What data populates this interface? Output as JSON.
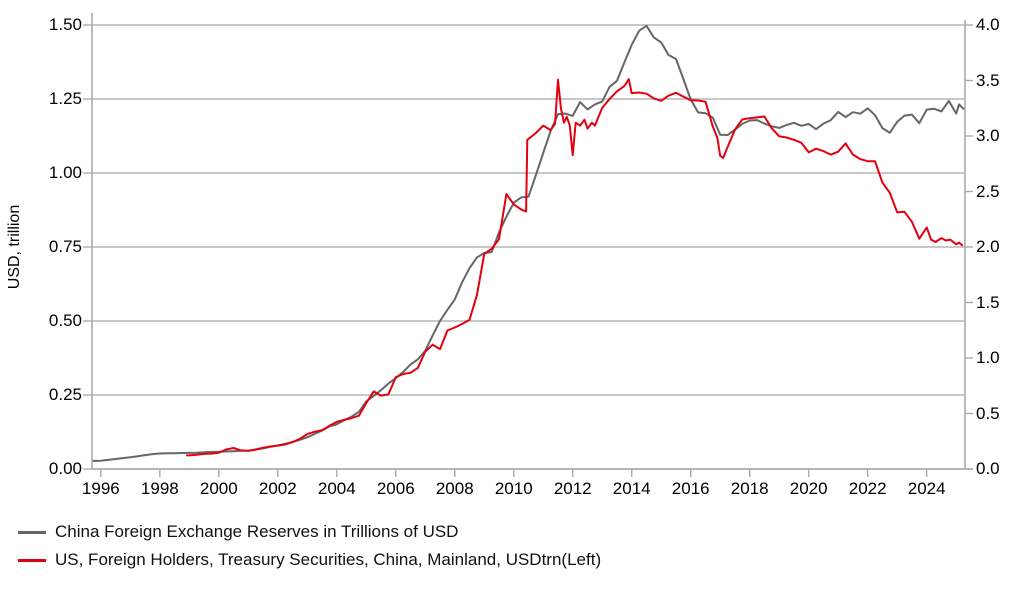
{
  "colors": {
    "background": "#ffffff",
    "grid": "#b6b6b6",
    "axis": "#aaaaaa",
    "text": "#000000",
    "series_gray": "#666666",
    "series_red": "#e3000f"
  },
  "chart_data": {
    "type": "line",
    "title": "",
    "grid": "horizontal",
    "legend_position": "bottom-left",
    "x_axis": {
      "range": [
        1995.7,
        2025.3
      ],
      "tick_values": [
        1996,
        1998,
        2000,
        2002,
        2004,
        2006,
        2008,
        2010,
        2012,
        2014,
        2016,
        2018,
        2020,
        2022,
        2024
      ],
      "tick_labels": [
        "1996",
        "1998",
        "2000",
        "2002",
        "2004",
        "2006",
        "2008",
        "2010",
        "2012",
        "2014",
        "2016",
        "2018",
        "2020",
        "2022",
        "2024"
      ]
    },
    "left_axis": {
      "label": "USD, trillion",
      "range": [
        0,
        1.5
      ],
      "tick_values": [
        0,
        0.25,
        0.5,
        0.75,
        1.0,
        1.25,
        1.5
      ],
      "tick_labels": [
        "0.00",
        "0.25",
        "0.50",
        "0.75",
        "1.00",
        "1.25",
        "1.50"
      ]
    },
    "right_axis": {
      "label": "",
      "range": [
        0,
        4.0
      ],
      "tick_values": [
        0,
        0.5,
        1.0,
        1.5,
        2.0,
        2.5,
        3.0,
        3.5,
        4.0
      ],
      "tick_labels": [
        "0.0",
        "0.5",
        "1.0",
        "1.5",
        "2.0",
        "2.5",
        "3.0",
        "3.5",
        "4.0"
      ]
    },
    "series": [
      {
        "name": "China Foreign Exchange Reserves in Trillions of USD",
        "axis": "right",
        "color": "#666666",
        "x": [
          1995.75,
          1996,
          1996.25,
          1996.5,
          1996.75,
          1997,
          1997.25,
          1997.5,
          1997.75,
          1998,
          1998.25,
          1998.5,
          1998.75,
          1999,
          1999.25,
          1999.5,
          1999.75,
          2000,
          2000.25,
          2000.5,
          2000.75,
          2001,
          2001.25,
          2001.5,
          2001.75,
          2002,
          2002.25,
          2002.5,
          2002.75,
          2003,
          2003.25,
          2003.5,
          2003.75,
          2004,
          2004.25,
          2004.5,
          2004.75,
          2005,
          2005.25,
          2005.5,
          2005.75,
          2006,
          2006.25,
          2006.5,
          2006.75,
          2007,
          2007.25,
          2007.5,
          2007.75,
          2008,
          2008.25,
          2008.5,
          2008.75,
          2009,
          2009.25,
          2009.5,
          2009.75,
          2010,
          2010.25,
          2010.5,
          2010.75,
          2011,
          2011.25,
          2011.5,
          2011.75,
          2012,
          2012.25,
          2012.5,
          2012.75,
          2013,
          2013.25,
          2013.5,
          2013.75,
          2014,
          2014.25,
          2014.5,
          2014.75,
          2015,
          2015.25,
          2015.5,
          2015.75,
          2016,
          2016.25,
          2016.5,
          2016.75,
          2017,
          2017.25,
          2017.5,
          2017.75,
          2018,
          2018.25,
          2018.5,
          2018.75,
          2019,
          2019.25,
          2019.5,
          2019.75,
          2020,
          2020.25,
          2020.5,
          2020.75,
          2021,
          2021.25,
          2021.5,
          2021.75,
          2022,
          2022.25,
          2022.5,
          2022.75,
          2023,
          2023.25,
          2023.5,
          2023.75,
          2024,
          2024.25,
          2024.5,
          2024.75,
          2025,
          2025.1,
          2025.25
        ],
        "values": [
          0.073,
          0.075,
          0.082,
          0.09,
          0.098,
          0.105,
          0.115,
          0.125,
          0.134,
          0.14,
          0.141,
          0.141,
          0.144,
          0.145,
          0.147,
          0.151,
          0.154,
          0.155,
          0.158,
          0.16,
          0.164,
          0.166,
          0.175,
          0.186,
          0.2,
          0.212,
          0.227,
          0.243,
          0.263,
          0.286,
          0.316,
          0.346,
          0.384,
          0.403,
          0.44,
          0.471,
          0.515,
          0.61,
          0.659,
          0.711,
          0.769,
          0.819,
          0.875,
          0.941,
          0.988,
          1.066,
          1.202,
          1.333,
          1.434,
          1.528,
          1.682,
          1.809,
          1.906,
          1.946,
          1.954,
          2.132,
          2.273,
          2.399,
          2.447,
          2.454,
          2.648,
          2.847,
          3.045,
          3.197,
          3.202,
          3.181,
          3.305,
          3.24,
          3.285,
          3.312,
          3.443,
          3.497,
          3.663,
          3.821,
          3.948,
          3.993,
          3.888,
          3.843,
          3.73,
          3.694,
          3.514,
          3.33,
          3.213,
          3.205,
          3.166,
          3.011,
          3.009,
          3.057,
          3.109,
          3.14,
          3.143,
          3.112,
          3.087,
          3.073,
          3.099,
          3.119,
          3.092,
          3.108,
          3.061,
          3.112,
          3.143,
          3.217,
          3.17,
          3.214,
          3.201,
          3.25,
          3.188,
          3.071,
          3.029,
          3.128,
          3.184,
          3.193,
          3.115,
          3.238,
          3.246,
          3.222,
          3.316,
          3.202,
          3.285,
          3.245
        ]
      },
      {
        "name": "US, Foreign Holders, Treasury Securities, China, Mainland, USDtrn(Left)",
        "axis": "left",
        "color": "#e3000f",
        "x": [
          1998.92,
          1999,
          1999.25,
          1999.5,
          1999.75,
          2000,
          2000.25,
          2000.5,
          2000.75,
          2001,
          2001.25,
          2001.5,
          2001.75,
          2002,
          2002.25,
          2002.5,
          2002.75,
          2003,
          2003.25,
          2003.5,
          2003.75,
          2004,
          2004.25,
          2004.5,
          2004.75,
          2005,
          2005.25,
          2005.5,
          2005.75,
          2006,
          2006.25,
          2006.5,
          2006.75,
          2007,
          2007.25,
          2007.5,
          2007.75,
          2008,
          2008.25,
          2008.5,
          2008.75,
          2009,
          2009.25,
          2009.5,
          2009.75,
          2010,
          2010.25,
          2010.42,
          2010.46,
          2010.75,
          2011,
          2011.25,
          2011.4,
          2011.5,
          2011.6,
          2011.7,
          2011.8,
          2011.9,
          2012,
          2012.1,
          2012.25,
          2012.4,
          2012.5,
          2012.65,
          2012.75,
          2013,
          2013.25,
          2013.5,
          2013.75,
          2013.9,
          2014,
          2014.25,
          2014.5,
          2014.75,
          2015,
          2015.25,
          2015.5,
          2015.75,
          2016,
          2016.25,
          2016.5,
          2016.75,
          2016.9,
          2017,
          2017.1,
          2017.25,
          2017.5,
          2017.75,
          2018,
          2018.25,
          2018.5,
          2018.75,
          2019,
          2019.25,
          2019.5,
          2019.75,
          2020,
          2020.25,
          2020.5,
          2020.75,
          2021,
          2021.25,
          2021.5,
          2021.75,
          2022,
          2022.25,
          2022.5,
          2022.75,
          2023,
          2023.25,
          2023.5,
          2023.75,
          2024,
          2024.15,
          2024.3,
          2024.5,
          2024.65,
          2024.8,
          2025,
          2025.1,
          2025.2
        ],
        "values": [
          0.046,
          0.046,
          0.048,
          0.051,
          0.052,
          0.055,
          0.066,
          0.071,
          0.063,
          0.061,
          0.066,
          0.072,
          0.076,
          0.079,
          0.083,
          0.091,
          0.102,
          0.118,
          0.126,
          0.131,
          0.146,
          0.159,
          0.166,
          0.172,
          0.18,
          0.223,
          0.262,
          0.248,
          0.252,
          0.31,
          0.321,
          0.325,
          0.342,
          0.397,
          0.42,
          0.405,
          0.468,
          0.478,
          0.49,
          0.504,
          0.587,
          0.727,
          0.744,
          0.776,
          0.929,
          0.894,
          0.877,
          0.87,
          1.112,
          1.135,
          1.16,
          1.145,
          1.166,
          1.315,
          1.22,
          1.17,
          1.19,
          1.16,
          1.06,
          1.17,
          1.16,
          1.18,
          1.15,
          1.17,
          1.16,
          1.22,
          1.25,
          1.276,
          1.294,
          1.317,
          1.27,
          1.272,
          1.268,
          1.252,
          1.244,
          1.261,
          1.271,
          1.258,
          1.246,
          1.245,
          1.241,
          1.157,
          1.12,
          1.058,
          1.051,
          1.088,
          1.147,
          1.181,
          1.185,
          1.188,
          1.191,
          1.151,
          1.124,
          1.12,
          1.112,
          1.102,
          1.07,
          1.082,
          1.074,
          1.062,
          1.072,
          1.1,
          1.062,
          1.047,
          1.04,
          1.04,
          0.968,
          0.933,
          0.867,
          0.869,
          0.835,
          0.778,
          0.816,
          0.775,
          0.767,
          0.78,
          0.772,
          0.775,
          0.759,
          0.765,
          0.756
        ]
      }
    ]
  }
}
